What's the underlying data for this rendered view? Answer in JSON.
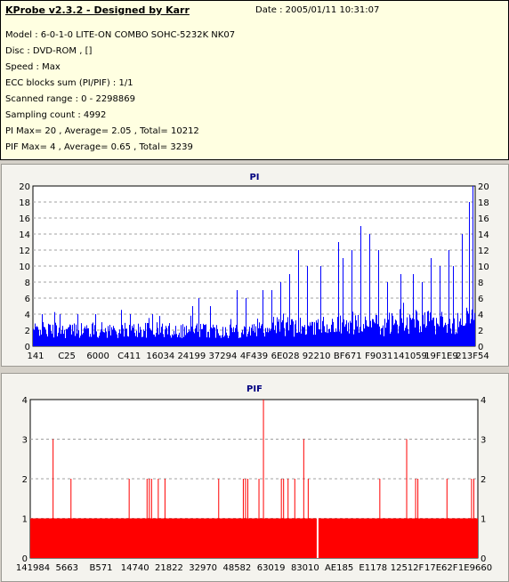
{
  "info": {
    "title": "KProbe v2.3.2 - Designed by Karr",
    "date": "Date : 2005/01/11 10:31:07",
    "lines": [
      "Model : 6-0-1-0 LITE-ON COMBO SOHC-5232K NK07",
      "Disc : DVD-ROM ,  []",
      "Speed : Max",
      "ECC blocks sum (PI/PIF) : 1/1",
      "Scanned range : 0 - 2298869",
      "Sampling count : 4992",
      "PI Max= 20 , Average= 2.05 , Total= 10212",
      "PIF Max= 4 , Average= 0.65 , Total= 3239"
    ]
  },
  "colors": {
    "pi_bar": "#0000ff",
    "pif_bar": "#ff0000",
    "grid": "#a0a0a0",
    "title": "#000080"
  },
  "chart_data": [
    {
      "type": "bar",
      "title": "PI",
      "ylim": [
        0,
        20
      ],
      "yticks": [
        0,
        2,
        4,
        6,
        8,
        10,
        12,
        14,
        16,
        18,
        20
      ],
      "xtick_labels": [
        "141",
        "C25",
        "6000",
        "C411",
        "16034",
        "24199",
        "37294",
        "4F439",
        "6E028",
        "92210",
        "BF671",
        "F9031",
        "141059",
        "19F1E9",
        "213F54"
      ],
      "grid": "horizontal dashed",
      "samples": 4992,
      "baseline_range": [
        1,
        3
      ],
      "peaks": [
        {
          "pos": 0.02,
          "v": 4
        },
        {
          "pos": 0.06,
          "v": 4
        },
        {
          "pos": 0.1,
          "v": 4
        },
        {
          "pos": 0.14,
          "v": 4
        },
        {
          "pos": 0.22,
          "v": 4
        },
        {
          "pos": 0.27,
          "v": 4
        },
        {
          "pos": 0.36,
          "v": 5
        },
        {
          "pos": 0.375,
          "v": 6
        },
        {
          "pos": 0.4,
          "v": 5
        },
        {
          "pos": 0.46,
          "v": 7
        },
        {
          "pos": 0.48,
          "v": 6
        },
        {
          "pos": 0.52,
          "v": 7
        },
        {
          "pos": 0.54,
          "v": 7
        },
        {
          "pos": 0.56,
          "v": 8
        },
        {
          "pos": 0.58,
          "v": 9
        },
        {
          "pos": 0.6,
          "v": 12
        },
        {
          "pos": 0.62,
          "v": 10
        },
        {
          "pos": 0.65,
          "v": 10
        },
        {
          "pos": 0.69,
          "v": 13
        },
        {
          "pos": 0.7,
          "v": 11
        },
        {
          "pos": 0.72,
          "v": 12
        },
        {
          "pos": 0.74,
          "v": 15
        },
        {
          "pos": 0.76,
          "v": 14
        },
        {
          "pos": 0.78,
          "v": 12
        },
        {
          "pos": 0.8,
          "v": 8
        },
        {
          "pos": 0.83,
          "v": 9
        },
        {
          "pos": 0.86,
          "v": 9
        },
        {
          "pos": 0.88,
          "v": 8
        },
        {
          "pos": 0.9,
          "v": 11
        },
        {
          "pos": 0.92,
          "v": 10
        },
        {
          "pos": 0.94,
          "v": 12
        },
        {
          "pos": 0.95,
          "v": 10
        },
        {
          "pos": 0.97,
          "v": 14
        },
        {
          "pos": 0.985,
          "v": 18
        },
        {
          "pos": 0.994,
          "v": 20
        }
      ]
    },
    {
      "type": "bar",
      "title": "PIF",
      "ylim": [
        0,
        4
      ],
      "yticks": [
        0,
        1,
        2,
        3,
        4
      ],
      "xtick_labels": [
        "141984",
        "5663",
        "B571",
        "14740",
        "21822",
        "32970",
        "48582",
        "63019",
        "83010",
        "AE185",
        "E1178",
        "12512F",
        "17E62F",
        "1E9660"
      ],
      "grid": "horizontal dashed",
      "samples": 4992,
      "baseline": 1,
      "gap_positions": [
        0.64
      ],
      "spikes": [
        {
          "pos": 0.05,
          "v": 3
        },
        {
          "pos": 0.09,
          "v": 2
        },
        {
          "pos": 0.22,
          "v": 2
        },
        {
          "pos": 0.26,
          "v": 2
        },
        {
          "pos": 0.265,
          "v": 2
        },
        {
          "pos": 0.27,
          "v": 2
        },
        {
          "pos": 0.285,
          "v": 2
        },
        {
          "pos": 0.3,
          "v": 2
        },
        {
          "pos": 0.42,
          "v": 2
        },
        {
          "pos": 0.475,
          "v": 2
        },
        {
          "pos": 0.48,
          "v": 2
        },
        {
          "pos": 0.485,
          "v": 2
        },
        {
          "pos": 0.51,
          "v": 2
        },
        {
          "pos": 0.52,
          "v": 4
        },
        {
          "pos": 0.56,
          "v": 2
        },
        {
          "pos": 0.565,
          "v": 2
        },
        {
          "pos": 0.575,
          "v": 2
        },
        {
          "pos": 0.59,
          "v": 2
        },
        {
          "pos": 0.61,
          "v": 3
        },
        {
          "pos": 0.62,
          "v": 2
        },
        {
          "pos": 0.78,
          "v": 2
        },
        {
          "pos": 0.84,
          "v": 3
        },
        {
          "pos": 0.86,
          "v": 2
        },
        {
          "pos": 0.865,
          "v": 2
        },
        {
          "pos": 0.93,
          "v": 2
        },
        {
          "pos": 0.985,
          "v": 2
        },
        {
          "pos": 0.99,
          "v": 2
        }
      ]
    }
  ]
}
